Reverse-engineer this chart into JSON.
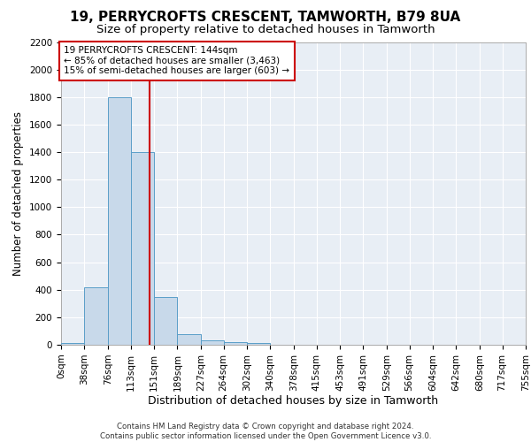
{
  "title1": "19, PERRYCROFTS CRESCENT, TAMWORTH, B79 8UA",
  "title2": "Size of property relative to detached houses in Tamworth",
  "xlabel": "Distribution of detached houses by size in Tamworth",
  "ylabel": "Number of detached properties",
  "bin_edges": [
    0,
    38,
    76,
    113,
    151,
    189,
    227,
    264,
    302,
    340,
    378,
    415,
    453,
    491,
    529,
    566,
    604,
    642,
    680,
    717,
    755
  ],
  "bar_heights": [
    10,
    420,
    1800,
    1400,
    350,
    80,
    30,
    20,
    10,
    0,
    0,
    0,
    0,
    0,
    0,
    0,
    0,
    0,
    0,
    0
  ],
  "bar_color": "#c8d9ea",
  "bar_edge_color": "#5a9ec8",
  "property_size": 144,
  "red_line_color": "#cc0000",
  "annotation_text": "19 PERRYCROFTS CRESCENT: 144sqm\n← 85% of detached houses are smaller (3,463)\n15% of semi-detached houses are larger (603) →",
  "annotation_box_color": "#ffffff",
  "annotation_box_edge": "#cc0000",
  "ylim": [
    0,
    2200
  ],
  "yticks": [
    0,
    200,
    400,
    600,
    800,
    1000,
    1200,
    1400,
    1600,
    1800,
    2000,
    2200
  ],
  "tick_labels": [
    "0sqm",
    "38sqm",
    "76sqm",
    "113sqm",
    "151sqm",
    "189sqm",
    "227sqm",
    "264sqm",
    "302sqm",
    "340sqm",
    "378sqm",
    "415sqm",
    "453sqm",
    "491sqm",
    "529sqm",
    "566sqm",
    "604sqm",
    "642sqm",
    "680sqm",
    "717sqm",
    "755sqm"
  ],
  "background_color": "#e8eef5",
  "footer_text": "Contains HM Land Registry data © Crown copyright and database right 2024.\nContains public sector information licensed under the Open Government Licence v3.0.",
  "title1_fontsize": 11,
  "title2_fontsize": 9.5,
  "xlabel_fontsize": 9,
  "ylabel_fontsize": 8.5,
  "grid_color": "#ffffff",
  "tick_fontsize": 7.5
}
